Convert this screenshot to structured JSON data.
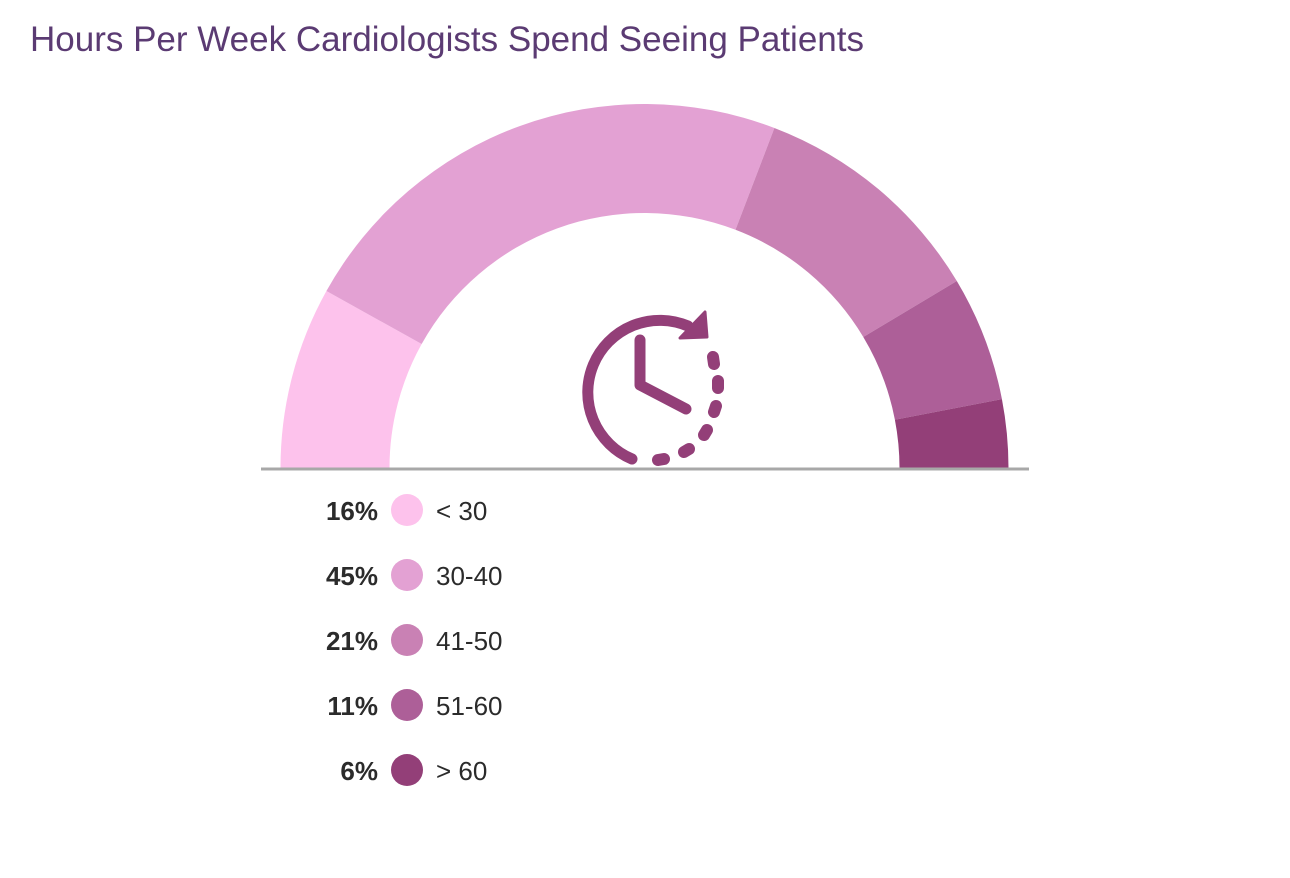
{
  "chart_data": {
    "type": "pie",
    "variant": "semi-donut",
    "title": "Hours Per Week Cardiologists Spend Seeing Patients",
    "categories": [
      "< 30",
      "30-40",
      "41-50",
      "51-60",
      "> 60"
    ],
    "values": [
      16,
      45,
      21,
      11,
      6
    ],
    "value_labels": [
      "16%",
      "45%",
      "21%",
      "11%",
      "6%"
    ],
    "colors": [
      "#fdc2ec",
      "#e3a1d3",
      "#c981b4",
      "#ad5f98",
      "#933f78"
    ],
    "legend_position": "bottom-left",
    "center_icon": "clock-rotate-icon",
    "icon_color": "#933f78",
    "baseline_color": "#a8a8a8"
  }
}
